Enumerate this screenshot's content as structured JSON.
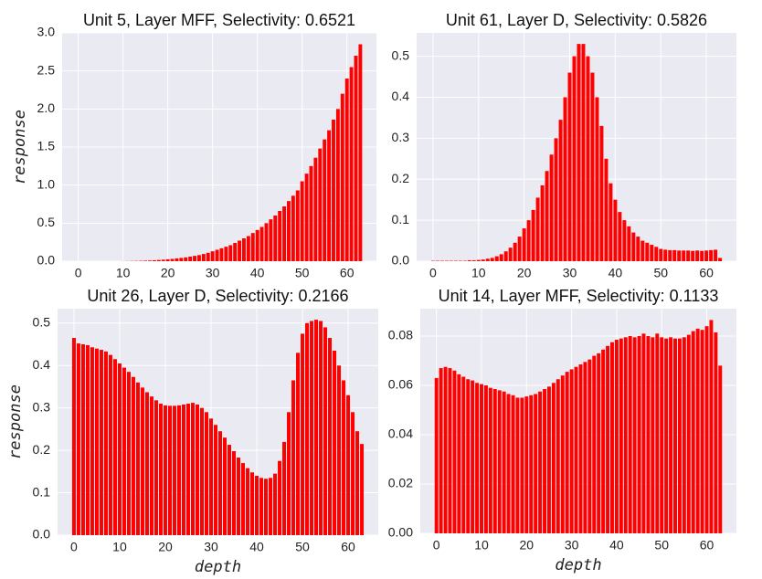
{
  "chart_data": [
    {
      "type": "bar",
      "title": "Unit 5, Layer MFF, Selectivity: 0.6521",
      "ylabel": "response",
      "color": "#ff0000",
      "grid": true,
      "x": [
        0,
        1,
        2,
        3,
        4,
        5,
        6,
        7,
        8,
        9,
        10,
        11,
        12,
        13,
        14,
        15,
        16,
        17,
        18,
        19,
        20,
        21,
        22,
        23,
        24,
        25,
        26,
        27,
        28,
        29,
        30,
        31,
        32,
        33,
        34,
        35,
        36,
        37,
        38,
        39,
        40,
        41,
        42,
        43,
        44,
        45,
        46,
        47,
        48,
        49,
        50,
        51,
        52,
        53,
        54,
        55,
        56,
        57,
        58,
        59,
        60,
        61,
        62,
        63
      ],
      "values": [
        0,
        0,
        0,
        0,
        0,
        0,
        0,
        0,
        0,
        0,
        0.001,
        0.002,
        0.003,
        0.004,
        0.005,
        0.007,
        0.009,
        0.012,
        0.016,
        0.02,
        0.025,
        0.03,
        0.036,
        0.043,
        0.05,
        0.06,
        0.07,
        0.08,
        0.095,
        0.11,
        0.13,
        0.15,
        0.17,
        0.19,
        0.21,
        0.24,
        0.27,
        0.3,
        0.33,
        0.37,
        0.41,
        0.45,
        0.5,
        0.55,
        0.6,
        0.66,
        0.72,
        0.79,
        0.86,
        0.93,
        1.05,
        1.15,
        1.25,
        1.36,
        1.48,
        1.6,
        1.72,
        1.86,
        2.0,
        2.2,
        2.4,
        2.55,
        2.7,
        2.85
      ],
      "xlim": [
        -3.59,
        66.59
      ],
      "xticks": [
        0,
        10,
        20,
        30,
        40,
        50,
        60
      ],
      "ylim": [
        0,
        3.0
      ],
      "yticks": [
        {
          "value": 0,
          "label": "0.0"
        },
        0.5,
        {
          "value": 1,
          "label": "1.0"
        },
        1.5,
        {
          "value": 2,
          "label": "2.0"
        },
        2.5,
        {
          "value": 3,
          "label": "3.0"
        }
      ]
    },
    {
      "type": "bar",
      "title": "Unit 61, Layer D, Selectivity: 0.5826",
      "color": "#ff0000",
      "grid": true,
      "x": [
        0,
        1,
        2,
        3,
        4,
        5,
        6,
        7,
        8,
        9,
        10,
        11,
        12,
        13,
        14,
        15,
        16,
        17,
        18,
        19,
        20,
        21,
        22,
        23,
        24,
        25,
        26,
        27,
        28,
        29,
        30,
        31,
        32,
        33,
        34,
        35,
        36,
        37,
        38,
        39,
        40,
        41,
        42,
        43,
        44,
        45,
        46,
        47,
        48,
        49,
        50,
        51,
        52,
        53,
        54,
        55,
        56,
        57,
        58,
        59,
        60,
        61,
        62,
        63
      ],
      "values": [
        0.001,
        0.001,
        0.001,
        0.001,
        0.001,
        0.001,
        0.001,
        0.001,
        0.002,
        0.002,
        0.003,
        0.004,
        0.006,
        0.008,
        0.012,
        0.017,
        0.024,
        0.033,
        0.045,
        0.06,
        0.08,
        0.1,
        0.125,
        0.155,
        0.185,
        0.22,
        0.26,
        0.3,
        0.345,
        0.4,
        0.46,
        0.5,
        0.53,
        0.53,
        0.5,
        0.46,
        0.4,
        0.33,
        0.25,
        0.19,
        0.15,
        0.12,
        0.1,
        0.085,
        0.07,
        0.06,
        0.05,
        0.045,
        0.04,
        0.035,
        0.03,
        0.028,
        0.027,
        0.027,
        0.026,
        0.026,
        0.026,
        0.025,
        0.026,
        0.025,
        0.026,
        0.027,
        0.028,
        0.008
      ],
      "xlim": [
        -3.59,
        66.59
      ],
      "xticks": [
        0,
        10,
        20,
        30,
        40,
        50,
        60
      ],
      "ylim": [
        0,
        0.557
      ],
      "yticks": [
        {
          "value": 0,
          "label": "0.0"
        },
        0.1,
        0.2,
        0.3,
        0.4,
        0.5
      ]
    },
    {
      "type": "bar",
      "title": "Unit 26, Layer D, Selectivity: 0.2166",
      "ylabel": "response",
      "xlabel": "depth",
      "color": "#ff0000",
      "grid": true,
      "x": [
        0,
        1,
        2,
        3,
        4,
        5,
        6,
        7,
        8,
        9,
        10,
        11,
        12,
        13,
        14,
        15,
        16,
        17,
        18,
        19,
        20,
        21,
        22,
        23,
        24,
        25,
        26,
        27,
        28,
        29,
        30,
        31,
        32,
        33,
        34,
        35,
        36,
        37,
        38,
        39,
        40,
        41,
        42,
        43,
        44,
        45,
        46,
        47,
        48,
        49,
        50,
        51,
        52,
        53,
        54,
        55,
        56,
        57,
        58,
        59,
        60,
        61,
        62,
        63
      ],
      "values": [
        0.465,
        0.452,
        0.45,
        0.448,
        0.443,
        0.44,
        0.437,
        0.433,
        0.425,
        0.415,
        0.405,
        0.395,
        0.385,
        0.373,
        0.36,
        0.348,
        0.337,
        0.327,
        0.318,
        0.31,
        0.306,
        0.305,
        0.305,
        0.306,
        0.308,
        0.31,
        0.312,
        0.308,
        0.3,
        0.29,
        0.275,
        0.26,
        0.245,
        0.23,
        0.213,
        0.198,
        0.183,
        0.17,
        0.158,
        0.148,
        0.14,
        0.135,
        0.133,
        0.135,
        0.145,
        0.175,
        0.22,
        0.29,
        0.365,
        0.43,
        0.475,
        0.5,
        0.505,
        0.508,
        0.505,
        0.49,
        0.465,
        0.435,
        0.4,
        0.365,
        0.33,
        0.29,
        0.245,
        0.215
      ],
      "xlim": [
        -3.59,
        66.59
      ],
      "xticks": [
        0,
        10,
        20,
        30,
        40,
        50,
        60
      ],
      "ylim": [
        0,
        0.534
      ],
      "yticks": [
        {
          "value": 0,
          "label": "0.0"
        },
        0.1,
        0.2,
        0.3,
        0.4,
        0.5
      ]
    },
    {
      "type": "bar",
      "title": "Unit 14, Layer MFF, Selectivity: 0.1133",
      "xlabel": "depth",
      "color": "#ff0000",
      "grid": true,
      "x": [
        0,
        1,
        2,
        3,
        4,
        5,
        6,
        7,
        8,
        9,
        10,
        11,
        12,
        13,
        14,
        15,
        16,
        17,
        18,
        19,
        20,
        21,
        22,
        23,
        24,
        25,
        26,
        27,
        28,
        29,
        30,
        31,
        32,
        33,
        34,
        35,
        36,
        37,
        38,
        39,
        40,
        41,
        42,
        43,
        44,
        45,
        46,
        47,
        48,
        49,
        50,
        51,
        52,
        53,
        54,
        55,
        56,
        57,
        58,
        59,
        60,
        61,
        62,
        63
      ],
      "values": [
        0.063,
        0.067,
        0.0675,
        0.067,
        0.066,
        0.0645,
        0.0635,
        0.0625,
        0.062,
        0.061,
        0.0605,
        0.06,
        0.059,
        0.0585,
        0.058,
        0.0575,
        0.0565,
        0.056,
        0.055,
        0.055,
        0.0555,
        0.056,
        0.0565,
        0.0575,
        0.0585,
        0.0595,
        0.061,
        0.0625,
        0.064,
        0.0655,
        0.0665,
        0.0675,
        0.0685,
        0.0695,
        0.0705,
        0.072,
        0.073,
        0.0745,
        0.076,
        0.0775,
        0.0785,
        0.079,
        0.0795,
        0.08,
        0.0795,
        0.08,
        0.081,
        0.08,
        0.0795,
        0.081,
        0.0795,
        0.079,
        0.0795,
        0.079,
        0.079,
        0.0795,
        0.0805,
        0.082,
        0.083,
        0.0825,
        0.084,
        0.0865,
        0.0815,
        0.068
      ],
      "xlim": [
        -3.59,
        66.59
      ],
      "xticks": [
        0,
        10,
        20,
        30,
        40,
        50,
        60
      ],
      "ylim": [
        0,
        0.0911
      ],
      "yticks": [
        {
          "value": 0,
          "label": "0.00"
        },
        {
          "value": 0.02,
          "label": "0.02"
        },
        {
          "value": 0.04,
          "label": "0.04"
        },
        {
          "value": 0.06,
          "label": "0.06"
        },
        {
          "value": 0.08,
          "label": "0.08"
        }
      ]
    }
  ]
}
